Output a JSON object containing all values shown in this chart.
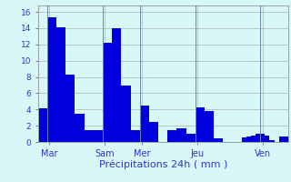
{
  "values": [
    4.2,
    4.2,
    15.3,
    15.3,
    14.1,
    14.1,
    8.3,
    8.3,
    3.5,
    3.5,
    1.5,
    1.5,
    1.5,
    1.5,
    12.2,
    12.2,
    14.0,
    14.0,
    7.0,
    7.0,
    1.5,
    1.5,
    4.5,
    4.5,
    2.5,
    2.5,
    0.0,
    0.0,
    1.5,
    1.5,
    1.7,
    1.7,
    1.0,
    1.0,
    4.3,
    4.3,
    3.8,
    3.8,
    0.5,
    0.5,
    0.0,
    0.0,
    0.0,
    0.0,
    0.6,
    0.7,
    0.8,
    1.0,
    1.0,
    0.8,
    0.2,
    0.0,
    0.7,
    0.7
  ],
  "bar_color": "#0000dd",
  "background_color": "#d8f8f8",
  "grid_color": "#a0a0a0",
  "title": "Précipitations 24h ( mm )",
  "yticks": [
    0,
    2,
    4,
    6,
    8,
    10,
    12,
    14,
    16
  ],
  "ylim": [
    0,
    16.8
  ],
  "day_labels": [
    "Mar",
    "Sam",
    "Mer",
    "Jeu",
    "Ven"
  ],
  "day_positions": [
    2,
    14,
    22,
    34,
    48
  ],
  "tick_color": "#3333cc",
  "ytick_fontsize": 6.5,
  "xlabel_fontsize": 8,
  "xtick_fontsize": 7
}
